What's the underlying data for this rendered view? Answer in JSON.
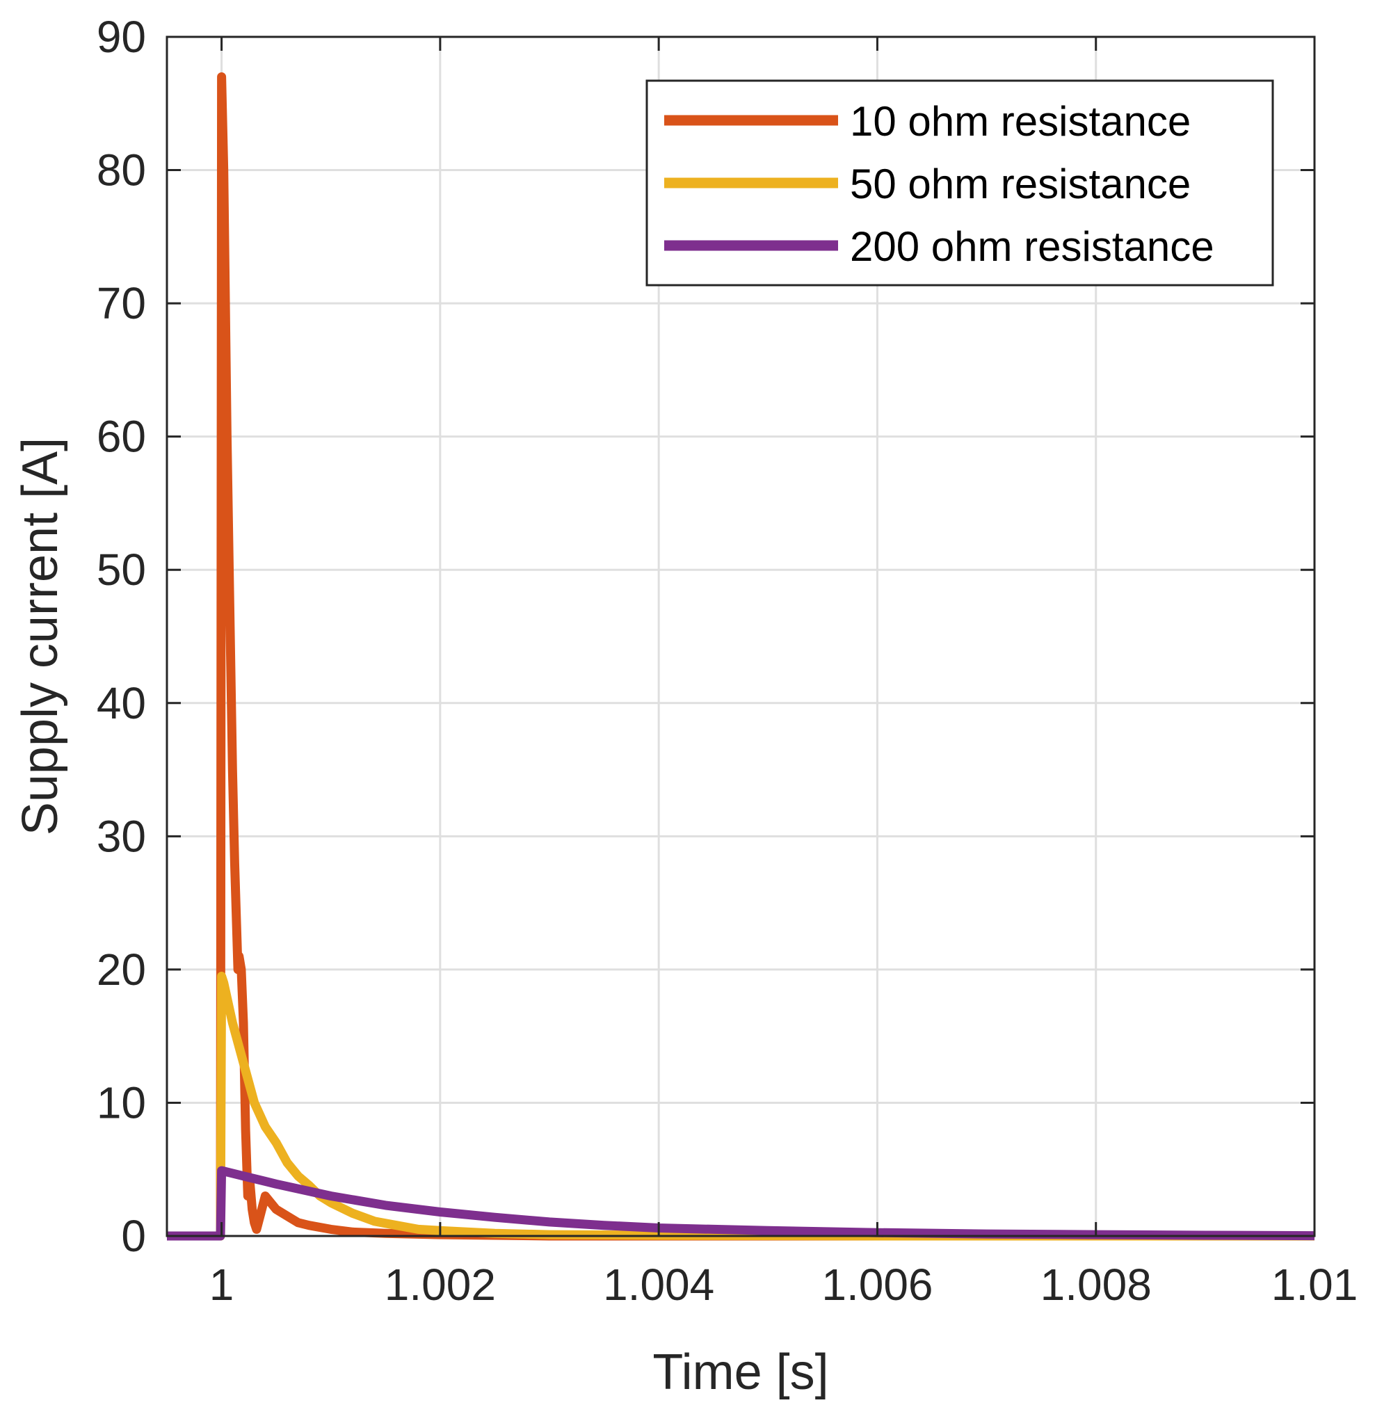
{
  "chart_data": {
    "type": "line",
    "title": "",
    "xlabel": "Time [s]",
    "ylabel": "Supply current [A]",
    "xlim": [
      0.9995,
      1.01
    ],
    "ylim": [
      0,
      90
    ],
    "xticks": [
      1,
      1.002,
      1.004,
      1.006,
      1.008,
      1.01
    ],
    "xtick_labels": [
      "1",
      "1.002",
      "1.004",
      "1.006",
      "1.008",
      "1.01"
    ],
    "yticks": [
      0,
      10,
      20,
      30,
      40,
      50,
      60,
      70,
      80,
      90
    ],
    "ytick_labels": [
      "0",
      "10",
      "20",
      "30",
      "40",
      "50",
      "60",
      "70",
      "80",
      "90"
    ],
    "grid": true,
    "legend_position": "top-right",
    "series": [
      {
        "name": "10 ohm resistance",
        "color": "#D95319",
        "x": [
          0.9995,
          0.99999,
          1.0,
          1.00002,
          1.00005,
          1.00008,
          1.0001,
          1.00012,
          1.00015,
          1.00016,
          1.00018,
          1.0002,
          1.00022,
          1.00024,
          1.00026,
          1.00028,
          1.0003,
          1.00032,
          1.0004,
          1.0005,
          1.0006,
          1.0007,
          1.0008,
          1.001,
          1.0012,
          1.0015,
          1.002,
          1.003,
          1.005,
          1.01
        ],
        "y": [
          0,
          0,
          87,
          80,
          60,
          45,
          35,
          28,
          20,
          21,
          20,
          16,
          8,
          3,
          4,
          2,
          1,
          0.5,
          3,
          2,
          1.5,
          1,
          0.8,
          0.5,
          0.3,
          0.2,
          0.1,
          0,
          0,
          0
        ]
      },
      {
        "name": "50 ohm resistance",
        "color": "#EDB120",
        "x": [
          0.9995,
          0.99999,
          1.0,
          1.00002,
          1.0001,
          1.0002,
          1.0003,
          1.0004,
          1.0005,
          1.0006,
          1.0007,
          1.0008,
          1.0009,
          1.001,
          1.0012,
          1.0014,
          1.0016,
          1.0018,
          1.002,
          1.0025,
          1.003,
          1.004,
          1.006,
          1.008,
          1.01
        ],
        "y": [
          0,
          0,
          19.5,
          19,
          16,
          13,
          10,
          8.2,
          7,
          5.5,
          4.5,
          3.8,
          3,
          2.5,
          1.7,
          1.1,
          0.8,
          0.5,
          0.4,
          0.2,
          0.1,
          0.05,
          0,
          0,
          0
        ]
      },
      {
        "name": "200 ohm resistance",
        "color": "#7E2F8E",
        "x": [
          0.9995,
          0.99999,
          1.0,
          1.0002,
          1.0005,
          1.001,
          1.0015,
          1.002,
          1.0025,
          1.003,
          1.0035,
          1.004,
          1.005,
          1.006,
          1.007,
          1.008,
          1.009,
          1.01
        ],
        "y": [
          0,
          0,
          4.9,
          4.5,
          3.9,
          3.0,
          2.3,
          1.8,
          1.4,
          1.05,
          0.8,
          0.6,
          0.4,
          0.25,
          0.15,
          0.1,
          0.05,
          0.02
        ]
      }
    ]
  }
}
